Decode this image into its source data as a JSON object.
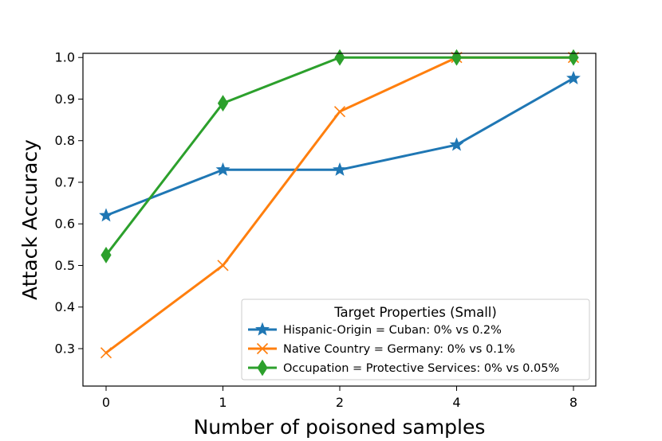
{
  "chart_data": {
    "type": "line",
    "title": "",
    "xlabel": "Number of poisoned samples",
    "ylabel": "Attack Accuracy",
    "categories": [
      "0",
      "1",
      "2",
      "4",
      "8"
    ],
    "ylim": [
      0.21,
      1.01
    ],
    "yticks": [
      "0.3",
      "0.4",
      "0.5",
      "0.6",
      "0.7",
      "0.8",
      "0.9",
      "1.0"
    ],
    "grid": false,
    "legend": {
      "title": "Target Properties (Small)",
      "placement": "lower-right"
    },
    "series": [
      {
        "name": "Hispanic-Origin = Cuban: 0% vs 0.2%",
        "values": [
          0.62,
          0.73,
          0.73,
          0.79,
          0.95
        ],
        "color": "#1f77b4",
        "marker": "star"
      },
      {
        "name": "Native Country = Germany: 0% vs 0.1%",
        "values": [
          0.29,
          0.5,
          0.87,
          1.0,
          1.0
        ],
        "color": "#ff7f0e",
        "marker": "x"
      },
      {
        "name": "Occupation = Protective Services: 0% vs 0.05%",
        "values": [
          0.525,
          0.89,
          1.0,
          1.0,
          1.0
        ],
        "color": "#2ca02c",
        "marker": "thin-diamond"
      }
    ]
  }
}
